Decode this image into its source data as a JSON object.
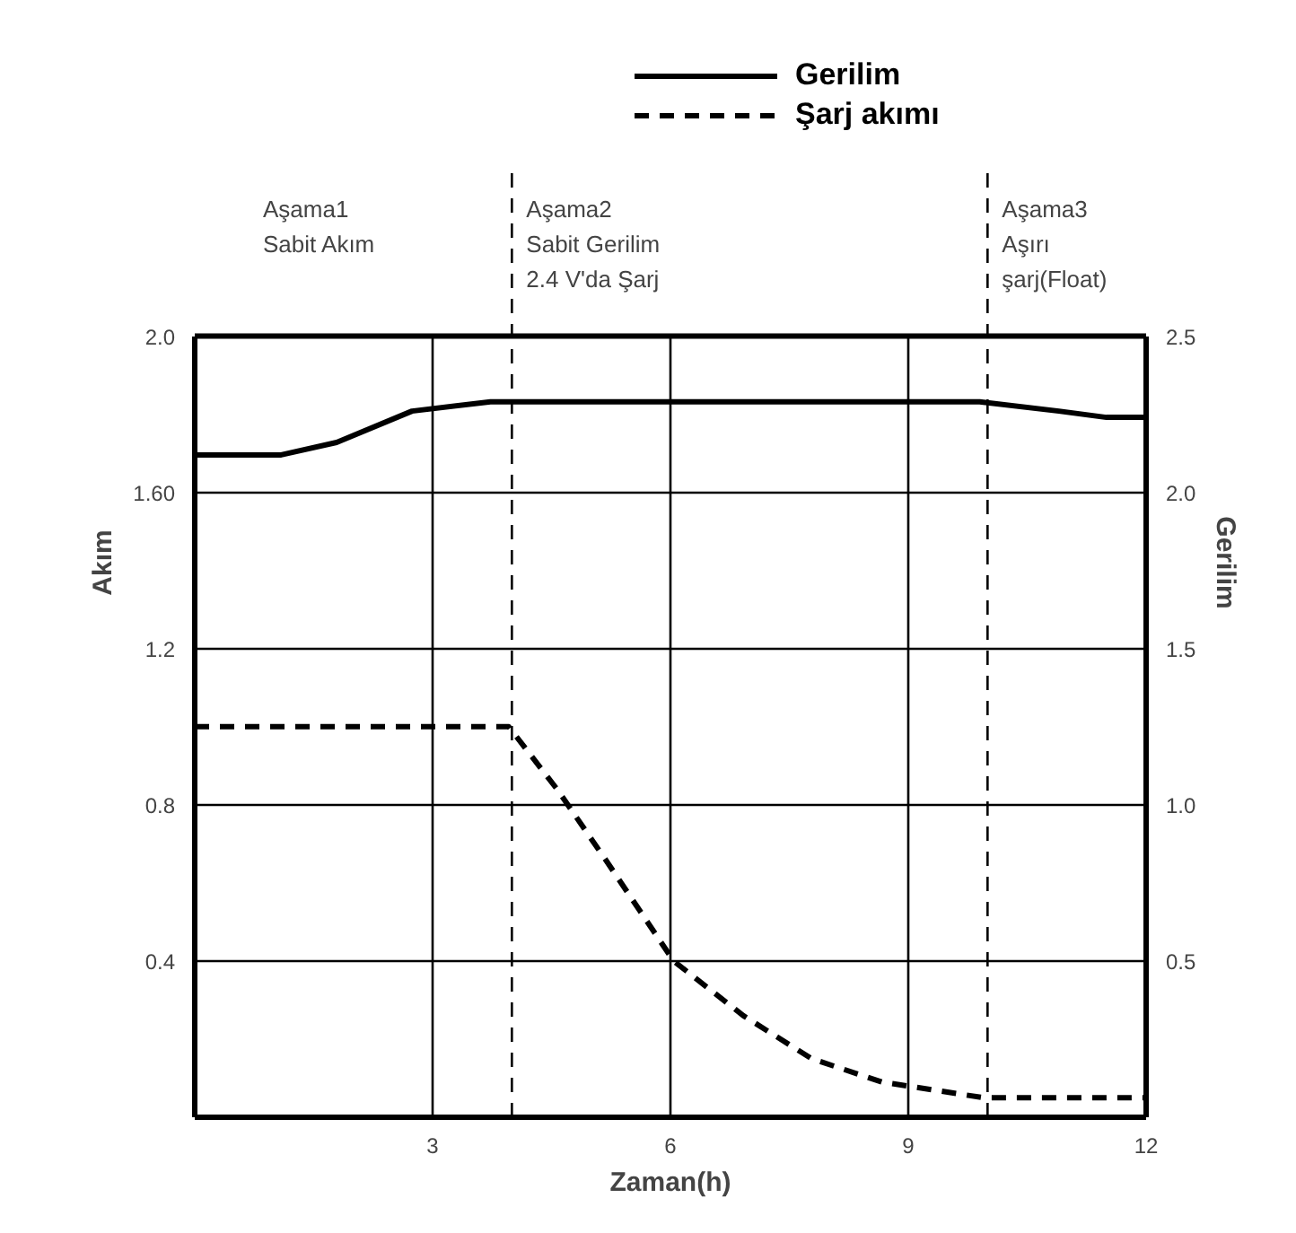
{
  "chart_data": {
    "type": "line",
    "xlabel": "Zaman(h)",
    "ylabel": "Akım",
    "y2label": "Gerilim",
    "x": [
      0,
      1.09,
      1.79,
      2.74,
      3.73,
      6,
      9.9,
      10.9,
      11.5,
      12
    ],
    "series": [
      {
        "name": "Gerilim",
        "color": "#000000",
        "line_style": "solid",
        "axis": "y2",
        "values": [
          2.12,
          2.12,
          2.16,
          2.26,
          2.29,
          2.29,
          2.29,
          2.26,
          2.24,
          2.24
        ]
      },
      {
        "name": "Şarj akımı",
        "color": "#000000",
        "line_style": "dashed",
        "axis": "y",
        "x": [
          0,
          3.96,
          4.57,
          5.18,
          6.04,
          6.92,
          7.78,
          8.67,
          9.95,
          12
        ],
        "values": [
          1.0,
          1.0,
          0.84,
          0.66,
          0.4,
          0.26,
          0.15,
          0.09,
          0.05,
          0.05
        ]
      }
    ],
    "xlim": [
      0,
      12
    ],
    "xticks": [
      3,
      6,
      9,
      12
    ],
    "ylim": [
      0,
      2.0
    ],
    "yticks": [
      0.4,
      0.8,
      1.2,
      {
        "value": 1.6,
        "label": "1.60"
      },
      {
        "value": 2.0,
        "label": "2.0"
      }
    ],
    "y2lim": [
      0,
      2.5
    ],
    "y2ticks": [
      0.5,
      {
        "value": 1.0,
        "label": "1.0"
      },
      1.5,
      {
        "value": 2.0,
        "label": "2.0"
      },
      2.5
    ],
    "ref_lines": [
      {
        "axis": "x",
        "value": 4,
        "color": "#000000",
        "line_style": "dashed"
      },
      {
        "axis": "x",
        "value": 10,
        "color": "#000000",
        "line_style": "dashed"
      }
    ],
    "annotations": [
      "Aşama1\nSabit Akım",
      "Aşama2\nSabit Gerilim\n2.4 V'da Şarj",
      "Aşama3\nAşırı şarj(Float)"
    ],
    "grid": true,
    "legend": "top",
    "marker": "none"
  }
}
